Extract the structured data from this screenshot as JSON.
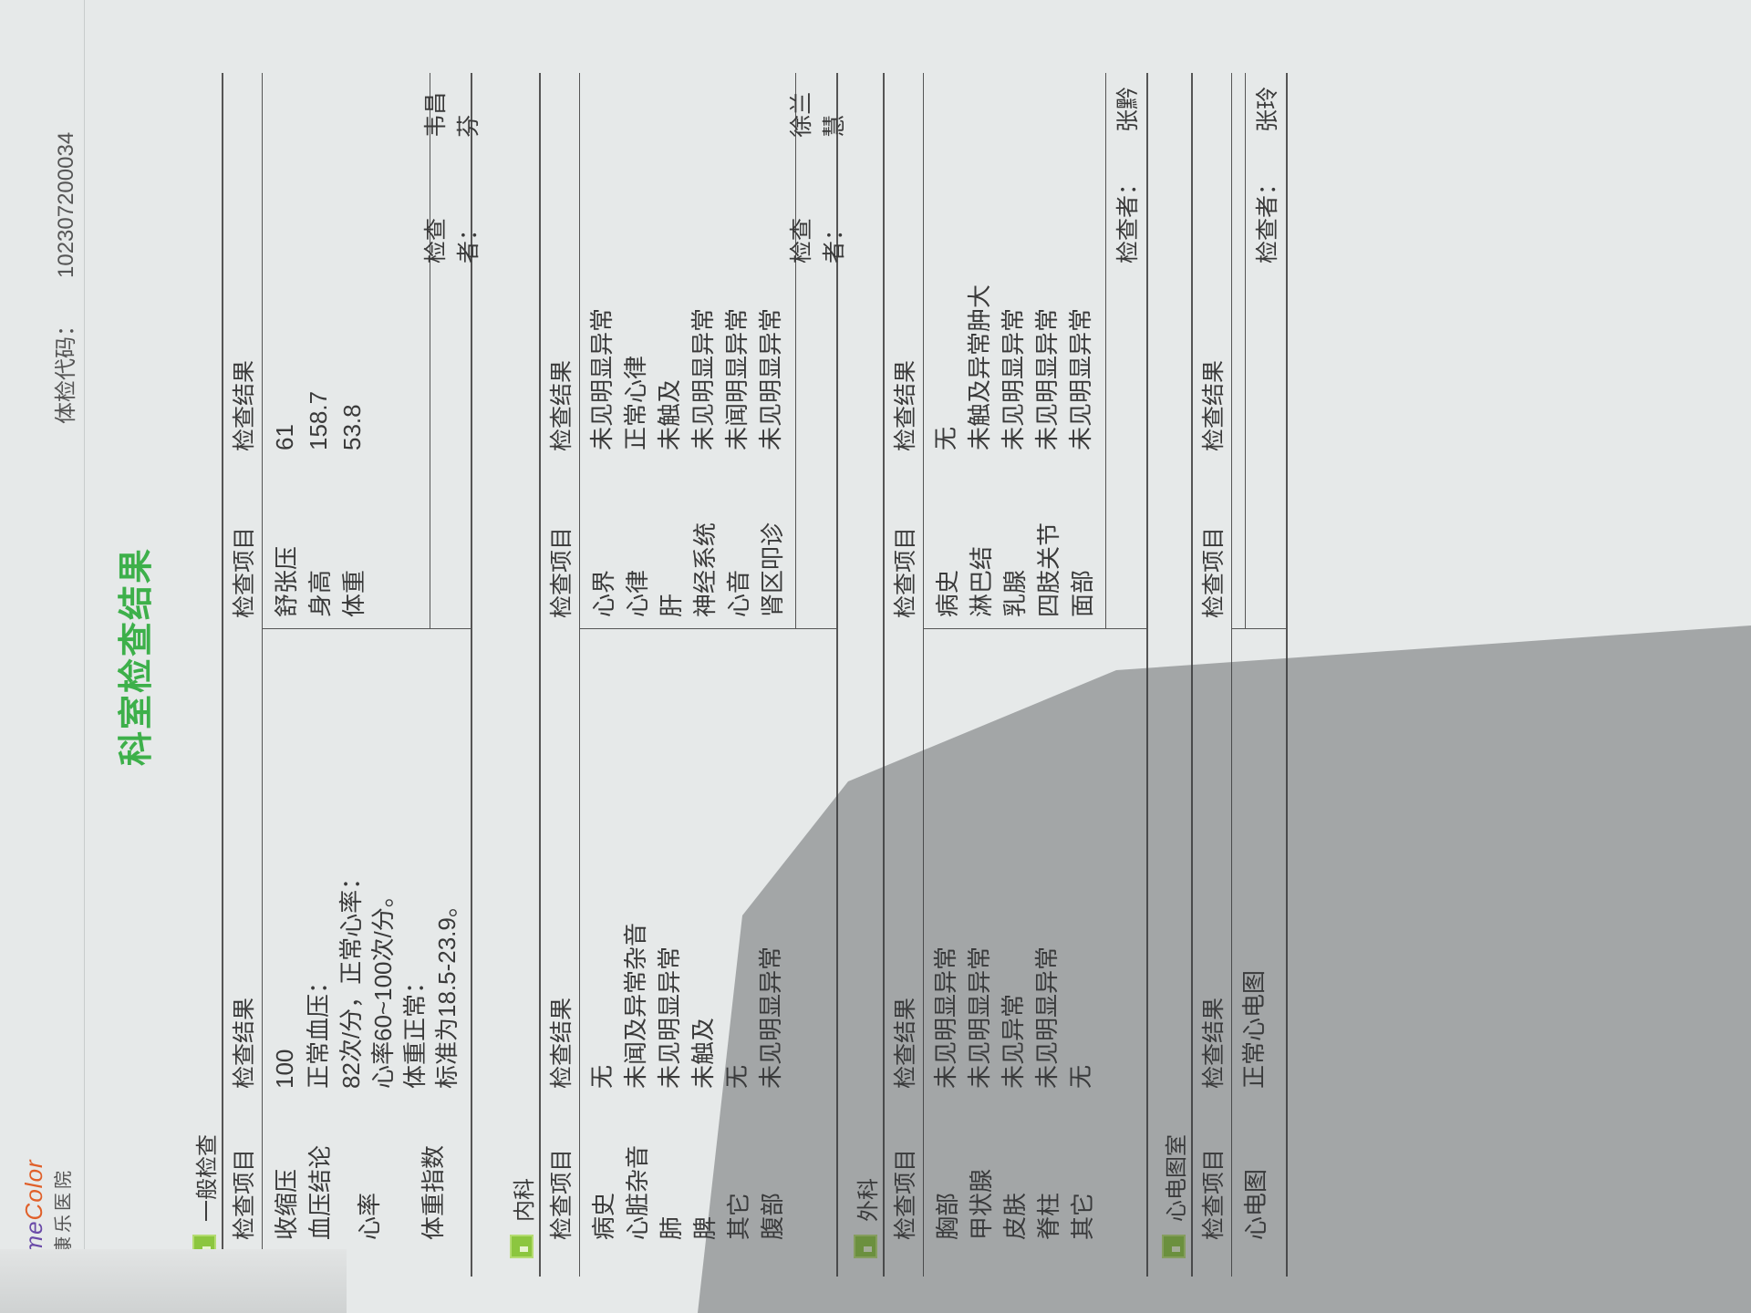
{
  "header": {
    "logo_text_a": "Time",
    "logo_text_b": "Color",
    "hospital": "泰康乐医院",
    "code_label": "体检代码：",
    "code_value": "102307200034"
  },
  "title": "科室检查结果",
  "colors": {
    "accent": "#3db04a",
    "section_icon": "#8cc63f"
  },
  "sections": [
    {
      "name": "一般检查",
      "col_headers": [
        "检查项目",
        "检查结果",
        "检查项目",
        "检查结果"
      ],
      "left_rows": [
        {
          "item": "收缩压",
          "result": [
            "100"
          ]
        },
        {
          "item": "血压结论",
          "result": [
            "正常血压："
          ]
        },
        {
          "item": "心率",
          "result": [
            "82次/分，正常心率：",
            "心率60~100次/分。"
          ]
        },
        {
          "item": "体重指数",
          "result": [
            "体重正常：",
            "标准为18.5-23.9。"
          ]
        }
      ],
      "right_rows": [
        {
          "item": "舒张压",
          "result": [
            "61"
          ]
        },
        {
          "item": "身高",
          "result": [
            "158.7"
          ]
        },
        {
          "item": "体重",
          "result": [
            "53.8"
          ]
        }
      ],
      "checker_label": "检查者：",
      "checker": "韦昌芬"
    },
    {
      "name": "内科",
      "col_headers": [
        "检查项目",
        "检查结果",
        "检查项目",
        "检查结果"
      ],
      "left_rows": [
        {
          "item": "病史",
          "result": [
            "无"
          ]
        },
        {
          "item": "心脏杂音",
          "result": [
            "未闻及异常杂音"
          ]
        },
        {
          "item": "肺",
          "result": [
            "未见明显异常"
          ]
        },
        {
          "item": "脾",
          "result": [
            "未触及"
          ]
        },
        {
          "item": "其它",
          "result": [
            "无"
          ]
        },
        {
          "item": "腹部",
          "result": [
            "未见明显异常"
          ]
        }
      ],
      "right_rows": [
        {
          "item": "心界",
          "result": [
            "未见明显异常"
          ]
        },
        {
          "item": "心律",
          "result": [
            "正常心律"
          ]
        },
        {
          "item": "肝",
          "result": [
            "未触及"
          ]
        },
        {
          "item": "神经系统",
          "result": [
            "未见明显异常"
          ]
        },
        {
          "item": "心音",
          "result": [
            "未闻明显异常"
          ]
        },
        {
          "item": "肾区叩诊",
          "result": [
            "未见明显异常"
          ]
        }
      ],
      "checker_label": "检查者：",
      "checker": "徐兰慧"
    },
    {
      "name": "外科",
      "col_headers": [
        "检查项目",
        "检查结果",
        "检查项目",
        "检查结果"
      ],
      "left_rows": [
        {
          "item": "胸部",
          "result": [
            "未见明显异常"
          ]
        },
        {
          "item": "甲状腺",
          "result": [
            "未见明显异常"
          ]
        },
        {
          "item": "皮肤",
          "result": [
            "未见异常"
          ]
        },
        {
          "item": "脊柱",
          "result": [
            "未见明显异常"
          ]
        },
        {
          "item": "其它",
          "result": [
            "无"
          ]
        }
      ],
      "right_rows": [
        {
          "item": "病史",
          "result": [
            "无"
          ]
        },
        {
          "item": "淋巴结",
          "result": [
            "未触及异常肿大"
          ]
        },
        {
          "item": "乳腺",
          "result": [
            "未见明显异常"
          ]
        },
        {
          "item": "四肢关节",
          "result": [
            "未见明显异常"
          ]
        },
        {
          "item": "面部",
          "result": [
            "未见明显异常"
          ]
        }
      ],
      "checker_label": "检查者：",
      "checker": "张黔"
    },
    {
      "name": "心电图室",
      "col_headers": [
        "检查项目",
        "检查结果",
        "检查项目",
        "检查结果"
      ],
      "left_rows": [
        {
          "item": "心电图",
          "result": [
            "正常心电图"
          ]
        }
      ],
      "right_rows": [],
      "checker_label": "检查者：",
      "checker": "张玲"
    }
  ]
}
